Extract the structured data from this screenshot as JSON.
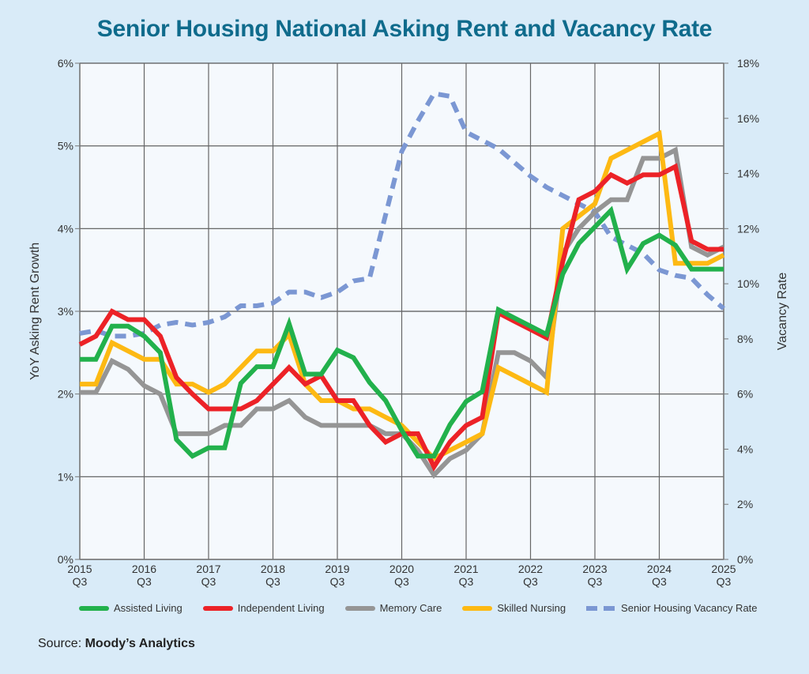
{
  "title": "Senior Housing National Asking Rent and Vacancy Rate",
  "source_label": "Source:",
  "source_name": "Moody’s Analytics",
  "chart_data": {
    "type": "line",
    "title": "Senior Housing National Asking Rent and Vacancy Rate",
    "xlabel": "",
    "ylabel": "YoY Asking Rent Growth",
    "y2label": "Vacancy Rate",
    "ylim": [
      0,
      6
    ],
    "y2lim": [
      0,
      18
    ],
    "yticks": [
      "0%",
      "1%",
      "2%",
      "3%",
      "4%",
      "5%",
      "6%"
    ],
    "y2ticks": [
      "0%",
      "2%",
      "4%",
      "6%",
      "8%",
      "10%",
      "12%",
      "14%",
      "16%",
      "18%"
    ],
    "xticks": [
      {
        "year": "2015",
        "q": "Q3"
      },
      {
        "year": "2016",
        "q": "Q3"
      },
      {
        "year": "2017",
        "q": "Q3"
      },
      {
        "year": "2018",
        "q": "Q3"
      },
      {
        "year": "2019",
        "q": "Q3"
      },
      {
        "year": "2020",
        "q": "Q3"
      },
      {
        "year": "2021",
        "q": "Q3"
      },
      {
        "year": "2022",
        "q": "Q3"
      },
      {
        "year": "2023",
        "q": "Q3"
      },
      {
        "year": "2024",
        "q": "Q3"
      },
      {
        "year": "2025",
        "q": "Q3"
      }
    ],
    "x_start": "2015 Q3",
    "x_end": "2025 Q3",
    "grid": true,
    "legend_position": "bottom",
    "series": [
      {
        "name": "Assisted Living",
        "color": "#22b14c",
        "axis": "left",
        "dashed": false,
        "values": [
          2.42,
          2.42,
          2.82,
          2.82,
          2.7,
          2.5,
          1.45,
          1.25,
          1.35,
          1.35,
          2.13,
          2.33,
          2.33,
          2.85,
          2.24,
          2.24,
          2.53,
          2.44,
          2.14,
          1.92,
          1.56,
          1.25,
          1.25,
          1.63,
          1.91,
          2.03,
          3.02,
          2.92,
          2.82,
          2.72,
          3.45,
          3.82,
          4.02,
          4.22,
          3.51,
          3.82,
          3.92,
          3.8,
          3.51,
          3.51,
          3.51
        ]
      },
      {
        "name": "Independent Living",
        "color": "#ec2227",
        "axis": "left",
        "dashed": false,
        "values": [
          2.6,
          2.7,
          3.0,
          2.9,
          2.9,
          2.7,
          2.2,
          2.0,
          1.82,
          1.82,
          1.82,
          1.92,
          2.12,
          2.32,
          2.12,
          2.22,
          1.92,
          1.92,
          1.62,
          1.42,
          1.52,
          1.52,
          1.12,
          1.42,
          1.62,
          1.72,
          2.98,
          2.88,
          2.78,
          2.68,
          3.6,
          4.35,
          4.45,
          4.65,
          4.55,
          4.65,
          4.65,
          4.75,
          3.85,
          3.75,
          3.75
        ]
      },
      {
        "name": "Memory Care",
        "color": "#959595",
        "axis": "left",
        "dashed": false,
        "values": [
          2.02,
          2.02,
          2.4,
          2.3,
          2.1,
          2.0,
          1.52,
          1.52,
          1.52,
          1.62,
          1.62,
          1.82,
          1.82,
          1.92,
          1.72,
          1.62,
          1.62,
          1.62,
          1.62,
          1.52,
          1.52,
          1.32,
          1.02,
          1.22,
          1.32,
          1.52,
          2.5,
          2.5,
          2.4,
          2.2,
          3.7,
          4.0,
          4.2,
          4.35,
          4.35,
          4.85,
          4.85,
          4.95,
          3.78,
          3.68,
          3.78
        ]
      },
      {
        "name": "Skilled Nursing",
        "color": "#fdb913",
        "axis": "left",
        "dashed": false,
        "values": [
          2.12,
          2.12,
          2.62,
          2.52,
          2.42,
          2.42,
          2.12,
          2.12,
          2.02,
          2.12,
          2.32,
          2.52,
          2.52,
          2.72,
          2.12,
          1.92,
          1.92,
          1.82,
          1.82,
          1.72,
          1.62,
          1.42,
          1.22,
          1.32,
          1.42,
          1.52,
          2.32,
          2.22,
          2.12,
          2.02,
          4.0,
          4.15,
          4.3,
          4.85,
          4.95,
          5.05,
          5.15,
          3.58,
          3.58,
          3.58,
          3.68
        ]
      },
      {
        "name": "Senior Housing Vacancy Rate",
        "color": "#7b97d3",
        "axis": "right",
        "dashed": true,
        "values": [
          8.2,
          8.3,
          8.1,
          8.1,
          8.2,
          8.5,
          8.6,
          8.5,
          8.6,
          8.8,
          9.2,
          9.2,
          9.3,
          9.7,
          9.7,
          9.5,
          9.7,
          10.1,
          10.2,
          12.5,
          14.8,
          15.9,
          16.9,
          16.8,
          15.5,
          15.2,
          14.9,
          14.4,
          13.9,
          13.5,
          13.2,
          12.9,
          12.6,
          11.7,
          11.4,
          11.1,
          10.5,
          10.3,
          10.2,
          9.6,
          9.1
        ]
      }
    ]
  }
}
